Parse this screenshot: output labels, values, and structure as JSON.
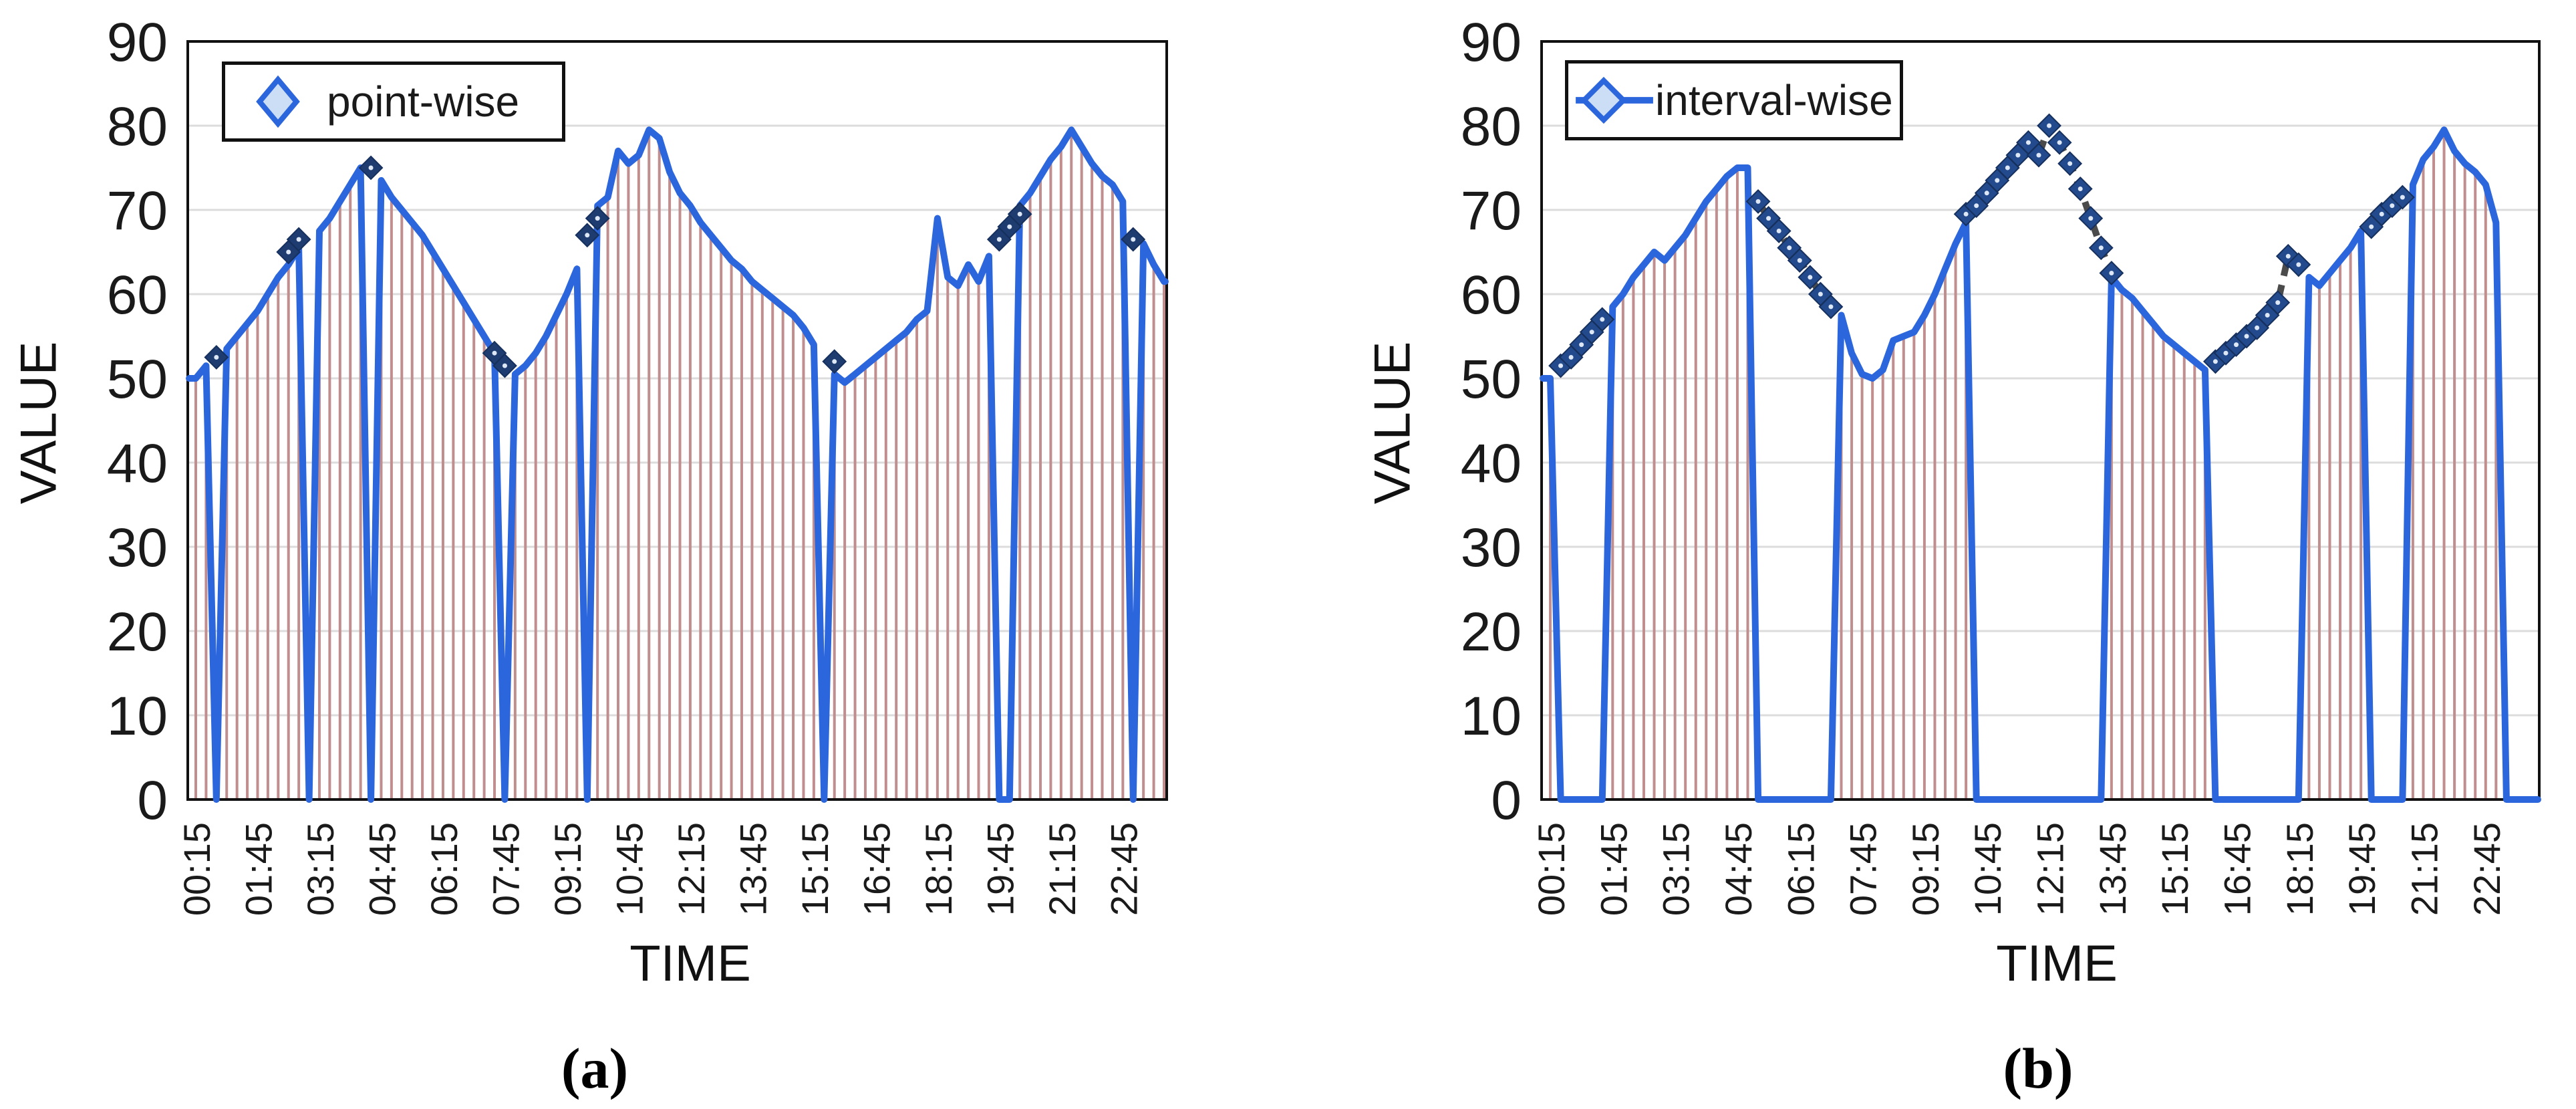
{
  "chart_data": [
    {
      "type": "line",
      "caption": "(a)",
      "legend": "point-wise",
      "legend_marker": "diamond",
      "xlabel": "TIME",
      "ylabel": "VALUE",
      "ylim": [
        0,
        90
      ],
      "ytick_step": 10,
      "x_start": "00:15",
      "x_step_minutes": 15,
      "x_tick_every": 6,
      "x_tick_labels": [
        "00:15",
        "01:45",
        "03:15",
        "04:45",
        "06:15",
        "07:45",
        "09:15",
        "10:45",
        "12:15",
        "13:45",
        "15:15",
        "16:45",
        "18:15",
        "19:45",
        "21:15",
        "22:45"
      ],
      "grid": true,
      "line_color": "#2c66dd",
      "drop_line_color": "#c08e8e",
      "grid_color": "#dcdcdc",
      "marker_color": "#1e3c70",
      "marker_edge_color": "#16305e",
      "connector_color": "#4b4b4b",
      "values": [
        50,
        51.5,
        0,
        53.5,
        55,
        56.5,
        58,
        60,
        62,
        63.5,
        65.5,
        0,
        67.5,
        69,
        71,
        73,
        75,
        0,
        73.5,
        71.5,
        70,
        68.5,
        67,
        65,
        63,
        61,
        59,
        57,
        55,
        53,
        0,
        50.5,
        51.5,
        53,
        55,
        57.5,
        60,
        63,
        0,
        70.5,
        71.5,
        77,
        75.5,
        76.5,
        79.5,
        78.5,
        74.5,
        72,
        70.5,
        68.5,
        67,
        65.5,
        64,
        63,
        61.5,
        60.5,
        59.5,
        58.5,
        57.5,
        56,
        54,
        0,
        50.5,
        49.5,
        50.5,
        51.5,
        52.5,
        53.5,
        54.5,
        55.5,
        57,
        58,
        69,
        62,
        61,
        63.5,
        61.5,
        64.5,
        0,
        0,
        70.5,
        72,
        74,
        76,
        77.5,
        79.5,
        77.5,
        75.5,
        74,
        73,
        71,
        0,
        66,
        63.5,
        61.5
      ],
      "markers": [
        [
          "00:45",
          52.5
        ],
        [
          "02:30",
          65
        ],
        [
          "02:45",
          66.5
        ],
        [
          "04:30",
          75
        ],
        [
          "07:30",
          53
        ],
        [
          "07:45",
          51.5
        ],
        [
          "09:45",
          67
        ],
        [
          "10:00",
          69
        ],
        [
          "15:45",
          52
        ],
        [
          "19:45",
          66.5
        ],
        [
          "20:00",
          68
        ],
        [
          "20:15",
          69.5
        ],
        [
          "23:00",
          66.5
        ]
      ]
    },
    {
      "type": "line",
      "caption": "(b)",
      "legend": "interval-wise",
      "legend_marker": "line-diamond",
      "xlabel": "TIME",
      "ylabel": "VALUE",
      "ylim": [
        0,
        90
      ],
      "ytick_step": 10,
      "x_start": "00:15",
      "x_step_minutes": 15,
      "x_tick_every": 6,
      "x_tick_labels": [
        "00:15",
        "01:45",
        "03:15",
        "04:45",
        "06:15",
        "07:45",
        "09:15",
        "10:45",
        "12:15",
        "13:45",
        "15:15",
        "16:45",
        "18:15",
        "19:45",
        "21:15",
        "22:45"
      ],
      "grid": true,
      "line_color": "#2c66dd",
      "drop_line_color": "#c08e8e",
      "grid_color": "#dcdcdc",
      "marker_color": "#234a8c",
      "marker_edge_color": "#16305e",
      "connector_color": "#4b4b4b",
      "values": [
        50,
        0,
        0,
        0,
        0,
        0,
        58.5,
        60,
        62,
        63.5,
        65,
        64,
        65.5,
        67,
        69,
        71,
        72.5,
        74,
        75,
        75,
        0,
        0,
        0,
        0,
        0,
        0,
        0,
        0,
        57.5,
        53,
        50.5,
        50,
        51,
        54.5,
        55,
        55.5,
        57.5,
        60,
        63,
        66,
        68.5,
        0,
        0,
        0,
        0,
        0,
        0,
        0,
        0,
        0,
        0,
        0,
        0,
        0,
        62,
        60.5,
        59.5,
        58,
        56.5,
        55,
        54,
        53,
        52,
        51,
        0,
        0,
        0,
        0,
        0,
        0,
        0,
        0,
        0,
        62,
        61,
        62.5,
        64,
        65.5,
        67.5,
        0,
        0,
        0,
        0,
        73,
        76,
        77.5,
        79.5,
        77,
        75.5,
        74.5,
        73,
        68.5,
        0,
        0,
        0
      ],
      "marker_runs": [
        [
          [
            "00:30",
            51.5
          ],
          [
            "00:45",
            52.5
          ],
          [
            "01:00",
            54
          ],
          [
            "01:15",
            55.5
          ],
          [
            "01:30",
            57
          ]
        ],
        [
          [
            "05:15",
            71
          ],
          [
            "05:30",
            69
          ],
          [
            "05:45",
            67.5
          ],
          [
            "06:00",
            65.5
          ],
          [
            "06:15",
            64
          ],
          [
            "06:30",
            62
          ],
          [
            "06:45",
            60
          ],
          [
            "07:00",
            58.5
          ]
        ],
        [
          [
            "10:15",
            69.5
          ],
          [
            "10:30",
            70.5
          ],
          [
            "10:45",
            72
          ],
          [
            "11:00",
            73.5
          ],
          [
            "11:15",
            75
          ],
          [
            "11:30",
            76.5
          ],
          [
            "11:45",
            78
          ],
          [
            "12:00",
            76.5
          ],
          [
            "12:15",
            80
          ],
          [
            "12:30",
            78
          ],
          [
            "12:45",
            75.5
          ],
          [
            "13:00",
            72.5
          ],
          [
            "13:15",
            69
          ],
          [
            "13:30",
            65.5
          ],
          [
            "13:45",
            62.5
          ]
        ],
        [
          [
            "16:15",
            52
          ],
          [
            "16:30",
            53
          ],
          [
            "16:45",
            54
          ],
          [
            "17:00",
            55
          ],
          [
            "17:15",
            56
          ],
          [
            "17:30",
            57.5
          ],
          [
            "17:45",
            59
          ],
          [
            "18:00",
            64.5
          ],
          [
            "18:15",
            63.5
          ]
        ],
        [
          [
            "20:00",
            68
          ],
          [
            "20:15",
            69.5
          ],
          [
            "20:30",
            70.5
          ],
          [
            "20:45",
            71.5
          ]
        ]
      ]
    }
  ]
}
